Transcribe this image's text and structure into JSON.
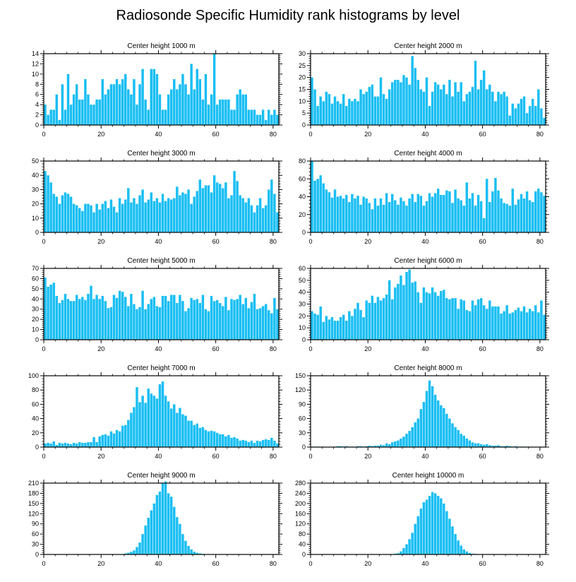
{
  "page": {
    "title": "Radiosonde Specific Humidity rank histograms by level"
  },
  "style": {
    "bar_color": "#19BEF3",
    "axis_color": "#000000"
  },
  "chart_data": [
    {
      "type": "bar",
      "title": "Center height 1000 m",
      "xlim": [
        0,
        82
      ],
      "xticks": [
        0,
        20,
        40,
        60,
        80
      ],
      "ylim": [
        0,
        14
      ],
      "yticks": [
        0,
        2,
        4,
        6,
        8,
        10,
        12,
        14
      ],
      "values": [
        4,
        2,
        3,
        3,
        6,
        1,
        8,
        3,
        10,
        4,
        6,
        8,
        5,
        5,
        9,
        6,
        4,
        4,
        5,
        5,
        9,
        6,
        7,
        8,
        8,
        9,
        8,
        9,
        10,
        7,
        6,
        9,
        4,
        8,
        11,
        5,
        3,
        11,
        11,
        10,
        6,
        3,
        3,
        6,
        7,
        9,
        7,
        8,
        10,
        8,
        6,
        12,
        7,
        11,
        9,
        5,
        10,
        4,
        6,
        14,
        4,
        5,
        5,
        5,
        5,
        3,
        3,
        6,
        7,
        6,
        6,
        3,
        3,
        3,
        2,
        2,
        3,
        1,
        3,
        2,
        3,
        2
      ]
    },
    {
      "type": "bar",
      "title": "Center height 2000 m",
      "xlim": [
        0,
        82
      ],
      "xticks": [
        0,
        20,
        40,
        60,
        80
      ],
      "ylim": [
        0,
        30
      ],
      "yticks": [
        0,
        5,
        10,
        15,
        20,
        25,
        30
      ],
      "values": [
        20,
        15,
        8,
        12,
        10,
        14,
        13,
        9,
        12,
        10,
        9,
        13,
        8,
        11,
        10,
        11,
        10,
        15,
        13,
        14,
        16,
        17,
        12,
        12,
        20,
        13,
        11,
        15,
        18,
        19,
        19,
        18,
        21,
        20,
        17,
        29,
        24,
        19,
        15,
        14,
        20,
        8,
        14,
        18,
        17,
        15,
        17,
        13,
        19,
        12,
        18,
        14,
        18,
        10,
        13,
        14,
        16,
        27,
        15,
        19,
        23,
        15,
        17,
        14,
        10,
        14,
        13,
        14,
        12,
        4,
        9,
        7,
        9,
        11,
        12,
        5,
        8,
        11,
        8,
        15,
        7,
        3
      ]
    },
    {
      "type": "bar",
      "title": "Center height 3000 m",
      "xlim": [
        0,
        82
      ],
      "xticks": [
        0,
        20,
        40,
        60,
        80
      ],
      "ylim": [
        0,
        50
      ],
      "yticks": [
        0,
        10,
        20,
        30,
        40,
        50
      ],
      "values": [
        43,
        40,
        35,
        27,
        25,
        20,
        26,
        28,
        27,
        25,
        20,
        19,
        17,
        15,
        20,
        20,
        19,
        14,
        20,
        16,
        20,
        22,
        17,
        23,
        18,
        14,
        24,
        20,
        23,
        31,
        21,
        24,
        20,
        26,
        30,
        21,
        23,
        28,
        22,
        24,
        21,
        27,
        22,
        24,
        23,
        24,
        32,
        26,
        28,
        27,
        30,
        20,
        25,
        29,
        37,
        31,
        33,
        33,
        28,
        40,
        35,
        34,
        31,
        35,
        24,
        26,
        43,
        36,
        26,
        24,
        21,
        24,
        19,
        14,
        19,
        24,
        17,
        19,
        30,
        37,
        27,
        14
      ]
    },
    {
      "type": "bar",
      "title": "Center height 4000 m",
      "xlim": [
        0,
        82
      ],
      "xticks": [
        0,
        20,
        40,
        60,
        80
      ],
      "ylim": [
        0,
        80
      ],
      "yticks": [
        0,
        20,
        40,
        60,
        80
      ],
      "values": [
        80,
        58,
        60,
        64,
        55,
        48,
        45,
        39,
        48,
        40,
        41,
        38,
        42,
        34,
        43,
        38,
        41,
        31,
        40,
        38,
        33,
        26,
        38,
        30,
        38,
        31,
        44,
        34,
        43,
        36,
        31,
        39,
        35,
        30,
        38,
        43,
        34,
        43,
        41,
        30,
        35,
        44,
        40,
        44,
        49,
        42,
        42,
        47,
        46,
        33,
        48,
        38,
        36,
        30,
        56,
        38,
        44,
        30,
        42,
        35,
        16,
        60,
        34,
        46,
        61,
        47,
        38,
        33,
        32,
        30,
        49,
        31,
        37,
        43,
        38,
        46,
        36,
        34,
        46,
        49,
        45,
        41
      ]
    },
    {
      "type": "bar",
      "title": "Center height 5000 m",
      "xlim": [
        0,
        82
      ],
      "xticks": [
        0,
        20,
        40,
        60,
        80
      ],
      "ylim": [
        0,
        70
      ],
      "yticks": [
        0,
        10,
        20,
        30,
        40,
        50,
        60,
        70
      ],
      "values": [
        61,
        52,
        54,
        56,
        43,
        36,
        39,
        45,
        40,
        38,
        38,
        44,
        40,
        42,
        39,
        45,
        53,
        40,
        44,
        40,
        43,
        38,
        31,
        32,
        44,
        41,
        48,
        47,
        42,
        33,
        45,
        35,
        30,
        32,
        48,
        30,
        35,
        40,
        42,
        33,
        32,
        43,
        43,
        38,
        44,
        44,
        36,
        44,
        38,
        28,
        31,
        41,
        39,
        40,
        36,
        44,
        30,
        28,
        43,
        38,
        39,
        36,
        33,
        42,
        29,
        40,
        39,
        40,
        44,
        35,
        41,
        31,
        37,
        45,
        30,
        31,
        33,
        35,
        29,
        26,
        41,
        30
      ]
    },
    {
      "type": "bar",
      "title": "Center height 6000 m",
      "xlim": [
        0,
        82
      ],
      "xticks": [
        0,
        20,
        40,
        60,
        80
      ],
      "ylim": [
        0,
        60
      ],
      "yticks": [
        0,
        10,
        20,
        30,
        40,
        50,
        60
      ],
      "values": [
        24,
        22,
        21,
        28,
        15,
        20,
        17,
        19,
        16,
        16,
        19,
        21,
        16,
        24,
        20,
        26,
        31,
        25,
        19,
        33,
        31,
        37,
        31,
        36,
        33,
        35,
        38,
        50,
        34,
        44,
        47,
        54,
        46,
        57,
        59,
        48,
        49,
        40,
        31,
        44,
        40,
        39,
        44,
        40,
        37,
        41,
        42,
        35,
        34,
        35,
        35,
        26,
        34,
        33,
        25,
        24,
        33,
        29,
        34,
        35,
        29,
        26,
        33,
        28,
        28,
        28,
        22,
        24,
        29,
        22,
        23,
        25,
        27,
        24,
        28,
        23,
        26,
        24,
        29,
        23,
        33,
        21
      ]
    },
    {
      "type": "bar",
      "title": "Center height 7000 m",
      "xlim": [
        0,
        82
      ],
      "xticks": [
        0,
        20,
        40,
        60,
        80
      ],
      "ylim": [
        0,
        100
      ],
      "yticks": [
        0,
        20,
        40,
        60,
        80,
        100
      ],
      "values": [
        5,
        6,
        5,
        8,
        3,
        6,
        5,
        6,
        5,
        4,
        6,
        5,
        7,
        6,
        6,
        7,
        7,
        14,
        7,
        15,
        17,
        18,
        16,
        22,
        19,
        24,
        22,
        30,
        31,
        38,
        48,
        56,
        84,
        63,
        72,
        62,
        82,
        75,
        72,
        68,
        88,
        92,
        72,
        64,
        54,
        60,
        48,
        55,
        46,
        44,
        37,
        37,
        31,
        33,
        27,
        28,
        24,
        22,
        23,
        22,
        20,
        18,
        18,
        15,
        17,
        13,
        14,
        12,
        9,
        10,
        9,
        7,
        9,
        6,
        9,
        8,
        10,
        11,
        10,
        13,
        9,
        5
      ]
    },
    {
      "type": "bar",
      "title": "Center height 8000 m",
      "xlim": [
        0,
        82
      ],
      "xticks": [
        0,
        20,
        40,
        60,
        80
      ],
      "ylim": [
        0,
        150
      ],
      "yticks": [
        0,
        30,
        60,
        90,
        120,
        150
      ],
      "values": [
        1,
        0,
        1,
        0,
        1,
        0,
        0,
        0,
        1,
        2,
        2,
        1,
        2,
        1,
        1,
        0,
        2,
        2,
        1,
        2,
        3,
        2,
        3,
        3,
        5,
        4,
        8,
        6,
        10,
        12,
        14,
        18,
        22,
        28,
        34,
        42,
        52,
        60,
        80,
        95,
        118,
        140,
        128,
        110,
        98,
        88,
        82,
        70,
        60,
        50,
        42,
        36,
        28,
        24,
        18,
        14,
        10,
        8,
        8,
        6,
        5,
        6,
        4,
        3,
        3,
        4,
        2,
        2,
        3,
        2,
        1,
        2,
        1,
        1,
        1,
        0,
        1,
        0,
        0,
        0,
        0,
        0
      ]
    },
    {
      "type": "bar",
      "title": "Center height 9000 m",
      "xlim": [
        0,
        82
      ],
      "xticks": [
        0,
        20,
        40,
        60,
        80
      ],
      "ylim": [
        0,
        210
      ],
      "yticks": [
        0,
        30,
        60,
        90,
        120,
        150,
        180,
        210
      ],
      "values": [
        0,
        0,
        0,
        0,
        0,
        0,
        0,
        0,
        0,
        0,
        0,
        0,
        0,
        0,
        0,
        0,
        0,
        0,
        0,
        0,
        0,
        0,
        0,
        0,
        0,
        0,
        0,
        1,
        3,
        5,
        8,
        12,
        22,
        35,
        60,
        85,
        108,
        130,
        150,
        175,
        185,
        210,
        215,
        180,
        170,
        140,
        110,
        90,
        60,
        40,
        25,
        15,
        8,
        5,
        3,
        2,
        1,
        1,
        1,
        0,
        0,
        0,
        0,
        0,
        0,
        0,
        0,
        0,
        0,
        0,
        0,
        0,
        0,
        0,
        0,
        0,
        0,
        0,
        0,
        0,
        0,
        0
      ]
    },
    {
      "type": "bar",
      "title": "Center height 10000 m",
      "xlim": [
        0,
        82
      ],
      "xticks": [
        0,
        20,
        40,
        60,
        80
      ],
      "ylim": [
        0,
        280
      ],
      "yticks": [
        0,
        40,
        80,
        120,
        160,
        200,
        240,
        280
      ],
      "values": [
        0,
        0,
        0,
        0,
        0,
        0,
        0,
        0,
        0,
        0,
        0,
        0,
        0,
        0,
        0,
        0,
        0,
        0,
        0,
        0,
        0,
        0,
        0,
        0,
        0,
        0,
        0,
        0,
        1,
        3,
        5,
        12,
        25,
        40,
        60,
        85,
        120,
        150,
        180,
        205,
        215,
        230,
        245,
        240,
        230,
        220,
        200,
        170,
        140,
        110,
        80,
        55,
        35,
        20,
        12,
        6,
        3,
        2,
        1,
        0,
        0,
        0,
        0,
        0,
        0,
        0,
        0,
        0,
        0,
        0,
        0,
        0,
        0,
        0,
        0,
        0,
        0,
        0,
        0,
        0,
        0,
        0
      ]
    }
  ]
}
